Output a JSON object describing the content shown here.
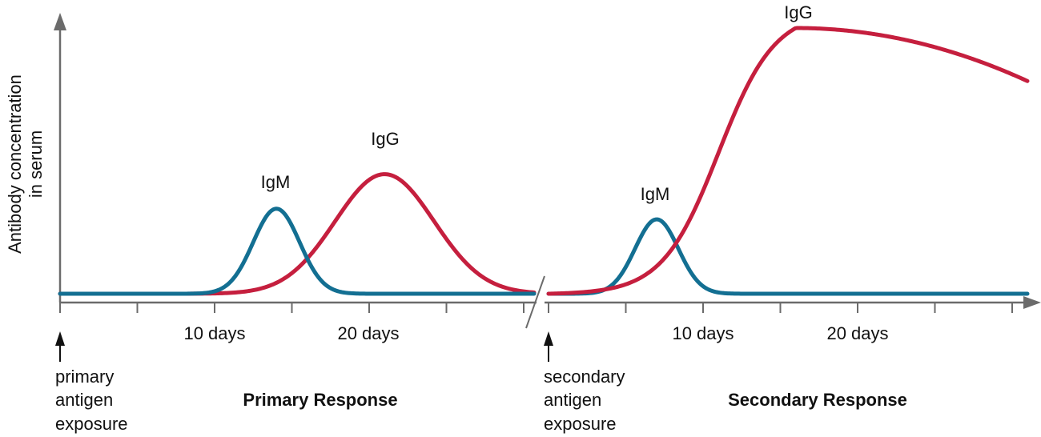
{
  "chart_data": {
    "type": "line",
    "ylabel_line1": "Antibody concentration",
    "ylabel_line2": "in serum",
    "colors": {
      "IgM": "#136f92",
      "IgG": "#c51f3e",
      "axis": "#6b6b6b"
    },
    "panels": [
      {
        "name": "primary",
        "title": "Primary Response",
        "exposure_label": [
          "primary",
          "antigen",
          "exposure"
        ],
        "x_range_days": [
          0,
          30
        ],
        "ticks": [
          {
            "day": 10,
            "label": "10 days"
          },
          {
            "day": 20,
            "label": "20 days"
          }
        ],
        "series": [
          {
            "name": "IgM",
            "label": "IgM",
            "peak_day": 14,
            "peak": 0.32,
            "sigma": 1.5
          },
          {
            "name": "IgG",
            "label": "IgG",
            "peak_day": 21,
            "peak": 0.45,
            "sigma": 3.2
          }
        ]
      },
      {
        "name": "secondary",
        "title": "Secondary Response",
        "exposure_label": [
          "secondary",
          "antigen",
          "exposure"
        ],
        "x_range_days": [
          0,
          31
        ],
        "ticks": [
          {
            "day": 10,
            "label": "10 days"
          },
          {
            "day": 20,
            "label": "20 days"
          }
        ],
        "series": [
          {
            "name": "IgM",
            "label": "IgM",
            "peak_day": 7,
            "peak": 0.28,
            "sigma": 1.4
          },
          {
            "name": "IgG",
            "label": "IgG",
            "shape": "plateau",
            "rise_mid_day": 11,
            "plateau_day": 16,
            "plateau": 1.0,
            "end_value": 0.8
          }
        ]
      }
    ]
  }
}
